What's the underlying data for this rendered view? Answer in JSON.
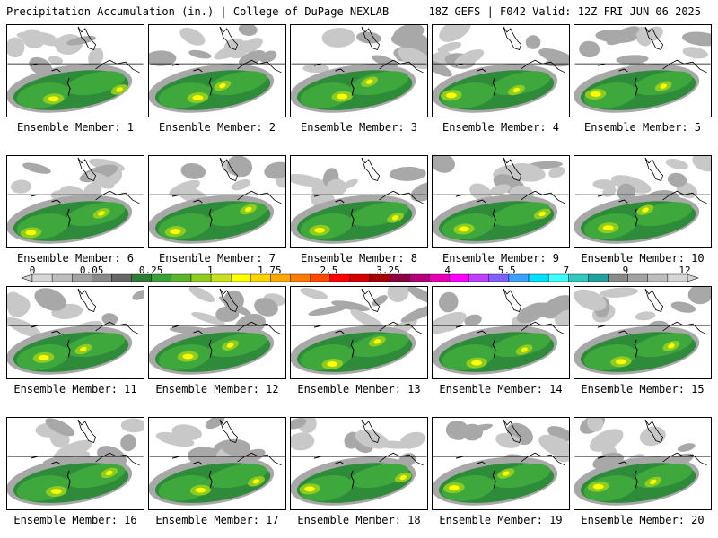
{
  "header": {
    "title": "Precipitation Accumulation (in.) | College of DuPage NEXLAB",
    "run_info": "18Z GEFS | F042 Valid: 12Z FRI JUN 06 2025"
  },
  "panels": [
    {
      "label": "Ensemble Member: 1"
    },
    {
      "label": "Ensemble Member: 2"
    },
    {
      "label": "Ensemble Member: 3"
    },
    {
      "label": "Ensemble Member: 4"
    },
    {
      "label": "Ensemble Member: 5"
    },
    {
      "label": "Ensemble Member: 6"
    },
    {
      "label": "Ensemble Member: 7"
    },
    {
      "label": "Ensemble Member: 8"
    },
    {
      "label": "Ensemble Member: 9"
    },
    {
      "label": "Ensemble Member: 10"
    },
    {
      "label": "Ensemble Member: 11"
    },
    {
      "label": "Ensemble Member: 12"
    },
    {
      "label": "Ensemble Member: 13"
    },
    {
      "label": "Ensemble Member: 14"
    },
    {
      "label": "Ensemble Member: 15"
    },
    {
      "label": "Ensemble Member: 16"
    },
    {
      "label": "Ensemble Member: 17"
    },
    {
      "label": "Ensemble Member: 18"
    },
    {
      "label": "Ensemble Member: 19"
    },
    {
      "label": "Ensemble Member: 20"
    }
  ],
  "legend": {
    "tick_labels": [
      "0",
      "0.05",
      "0.25",
      "1",
      "1.75",
      "2.5",
      "3.25",
      "4",
      "5.5",
      "7",
      "9",
      "12"
    ],
    "colors": [
      "#d6d6d6",
      "#bdbdbd",
      "#a3a3a3",
      "#8a8a8a",
      "#666666",
      "#2e7d32",
      "#3aa236",
      "#5ab52e",
      "#8fcc22",
      "#c8e020",
      "#ffff00",
      "#ffd400",
      "#ffa800",
      "#ff7a00",
      "#ff4a00",
      "#ff0000",
      "#d40000",
      "#a80000",
      "#8a0040",
      "#b4007a",
      "#e600b4",
      "#ff00ff",
      "#c040ff",
      "#8060ff",
      "#40a0ff",
      "#00e0ff",
      "#40ffff",
      "#30c8c0",
      "#20a0a0",
      "#8a8a8a",
      "#a3a3a3",
      "#bdbdbd",
      "#d6d6d6"
    ]
  }
}
